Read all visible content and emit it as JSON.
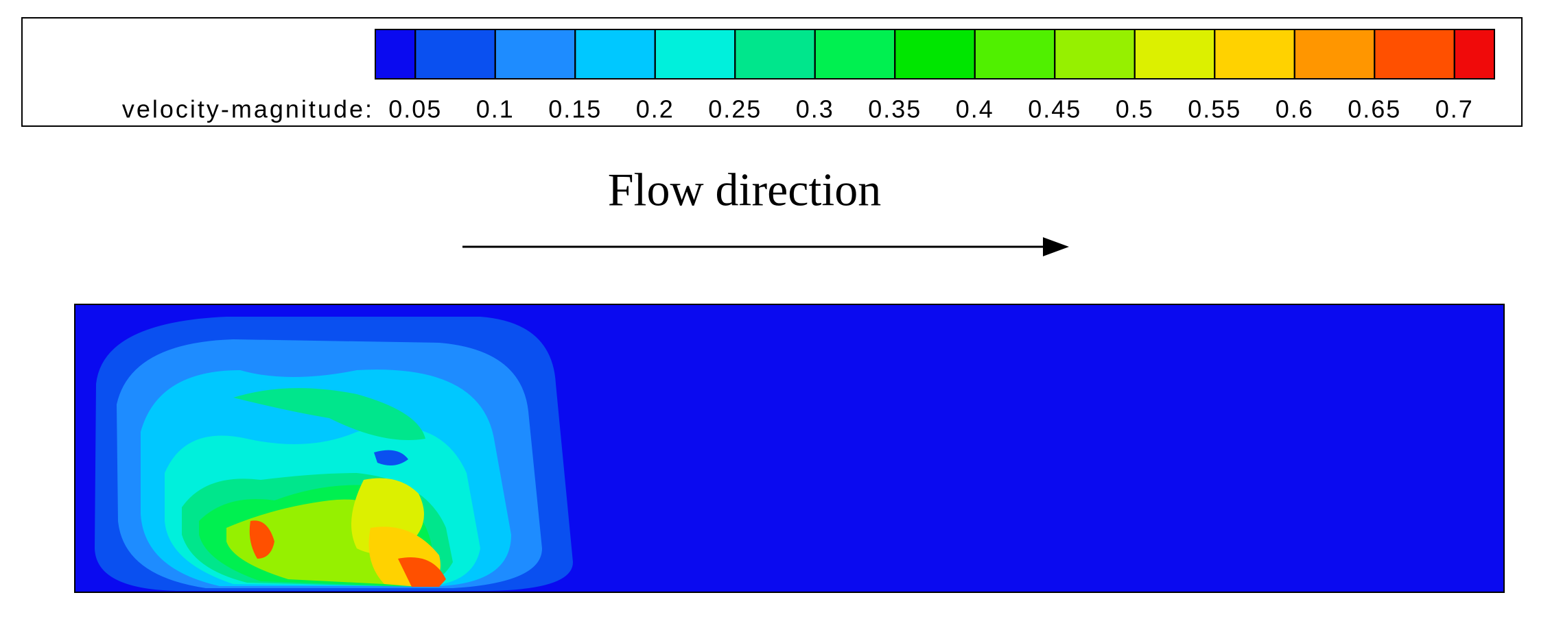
{
  "chart_data": {
    "type": "contour",
    "colorbar_label": "velocity-magnitude:",
    "xlim": [
      0.025,
      0.725
    ],
    "xticks": [
      0.05,
      0.1,
      0.15,
      0.2,
      0.25,
      0.3,
      0.35,
      0.4,
      0.45,
      0.5,
      0.55,
      0.6,
      0.65,
      0.7
    ],
    "colors": [
      "#0a0af0",
      "#0a50f0",
      "#1e8cff",
      "#00c8ff",
      "#00f0dc",
      "#00e68c",
      "#00f050",
      "#00e600",
      "#50f000",
      "#96f000",
      "#dcf000",
      "#ffd200",
      "#ff9600",
      "#ff5000",
      "#f00a0a"
    ],
    "annotation": "Flow direction"
  }
}
